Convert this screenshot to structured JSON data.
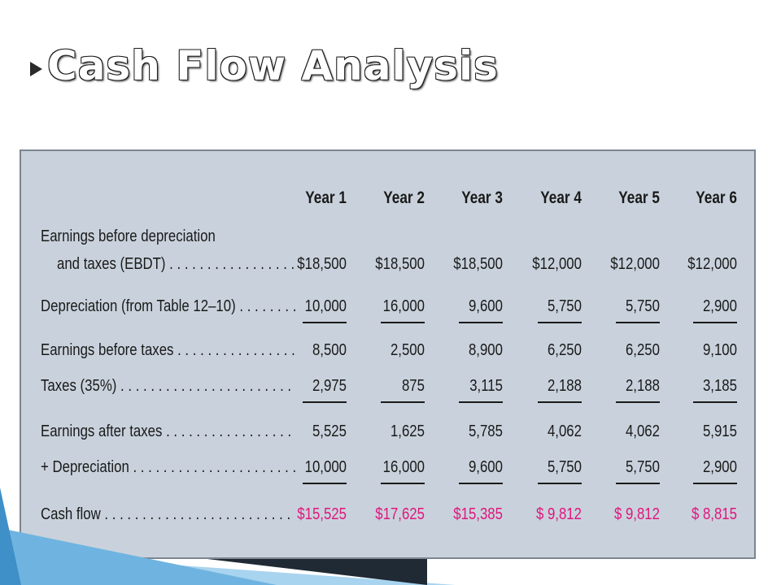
{
  "slide": {
    "title": "Cash Flow Analysis"
  },
  "table": {
    "columns": [
      "Year 1",
      "Year 2",
      "Year 3",
      "Year 4",
      "Year 5",
      "Year 6"
    ],
    "rows": [
      {
        "label_lines": [
          "Earnings before depreciation",
          "and taxes (EBDT) . . . . . . . . . . . . . . . . ."
        ],
        "values": [
          "$18,500",
          "$18,500",
          "$18,500",
          "$12,000",
          "$12,000",
          "$12,000"
        ],
        "underline": false,
        "pink": false
      },
      {
        "label_lines": [
          "Depreciation (from Table 12–10) . . . . . . . ."
        ],
        "values": [
          "10,000",
          "16,000",
          "9,600",
          "5,750",
          "5,750",
          "2,900"
        ],
        "underline": true,
        "pink": false
      },
      {
        "label_lines": [
          "Earnings before taxes . . . . . . . . . . . . . . . ."
        ],
        "values": [
          "8,500",
          "2,500",
          "8,900",
          "6,250",
          "6,250",
          "9,100"
        ],
        "underline": false,
        "pink": false
      },
      {
        "label_lines": [
          "Taxes (35%) . . . . . . . . . . . . . . . . . . . . . . ."
        ],
        "values": [
          "2,975",
          "875",
          "3,115",
          "2,188",
          "2,188",
          "3,185"
        ],
        "underline": true,
        "pink": false
      },
      {
        "label_lines": [
          "Earnings after taxes . . . . . . . . . . . . . . . . ."
        ],
        "values": [
          "5,525",
          "1,625",
          "5,785",
          "4,062",
          "4,062",
          "5,915"
        ],
        "underline": false,
        "pink": false
      },
      {
        "label_lines": [
          "+ Depreciation . . . . . . . . . . . . . . . . . . . . . ."
        ],
        "values": [
          "10,000",
          "16,000",
          "9,600",
          "5,750",
          "5,750",
          "2,900"
        ],
        "underline": true,
        "pink": false
      },
      {
        "label_lines": [
          "Cash flow . . . . . . . . . . . . . . . . . . . . . . . . ."
        ],
        "values": [
          "$15,525",
          "$17,625",
          "$15,385",
          "$  9,812",
          "$  9,812",
          "$  8,815"
        ],
        "underline": false,
        "pink": true
      }
    ]
  },
  "colors": {
    "panel": "#c9d2dc",
    "highlight": "#e0157e",
    "accent_blue": "#3f8fc8"
  }
}
